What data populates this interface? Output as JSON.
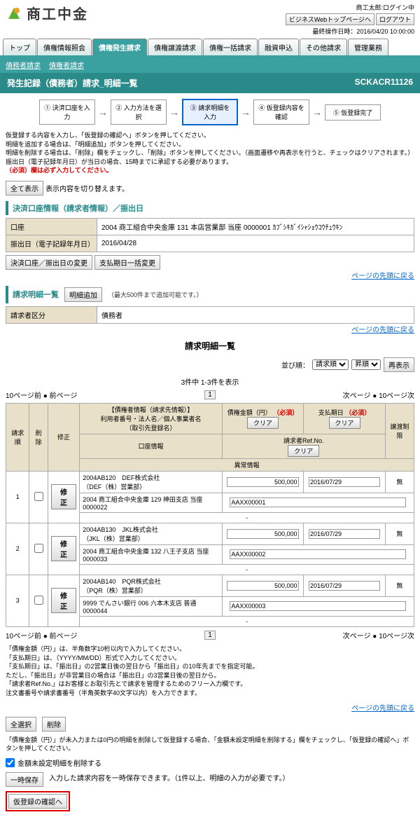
{
  "header": {
    "logo_text": "商工中金",
    "user_info": "商工太郎:ログイン中",
    "biz_top_btn": "ビジネスWebトップページへ",
    "logout_btn": "ログアウト",
    "last_op": "最終操作日時：2016/04/20 10:00:00"
  },
  "tabs": [
    "トップ",
    "債権情報照会",
    "債権発生請求",
    "債権譲渡請求",
    "債権一括請求",
    "融資申込",
    "その他請求",
    "管理業務"
  ],
  "active_tab": 2,
  "subtabs": [
    "債務者請求",
    "債権者請求"
  ],
  "title": "発生記録（債務者）請求_明細一覧",
  "screen_id": "SCKACR11126",
  "flow": [
    "① 決済口座を入力",
    "② 入力方法を選択",
    "③ 請求明細を入力",
    "④ 仮登録内容を確認",
    "⑤ 仮登録完了"
  ],
  "flow_active": 2,
  "notes": {
    "pre": "仮登録する内容を入力し、「仮登録の確認へ」ボタンを押してください。\n明細を追加する場合は、「明細追加」ボタンを押してください。\n明細を削除する場合は、「削除」欄をチェックし、「削除」ボタンを押してください。（画面遷移や再表示を行うと、チェックはクリアされます。）\n振出日（電子記録年月日）が当日の場合、15時までに承認する必要があります。",
    "required": "（必須）欄は必ず入力してください。"
  },
  "toggle_btn": "全て表示",
  "toggle_note": "表示内容を切り替えます。",
  "section1": "決済口座情報（請求者情報）／振出日",
  "account_label": "口座",
  "account_value": "2004 商工組合中央金庫 131 本店営業部 当座 0000001 ｶﾌﾞｼｷｶﾞｲｼｬｼｮｳｺｳﾁｭｳｷﾝ",
  "date_label": "振出日（電子記録年月日）",
  "date_value": "2016/04/28",
  "btn_account_change": "決済口座／振出日の変更",
  "btn_paydate_change": "支払期日一括変更",
  "section2": "請求明細一覧",
  "btn_add": "明細追加",
  "add_note": "（最大500件まで追加可能です。）",
  "requester_label": "請求者区分",
  "requester_value": "債務者",
  "back_link": "ページの先頭に戻る",
  "list_title": "請求明細一覧",
  "sort_label": "並び順：",
  "sort_options": [
    "請求順",
    "昇順"
  ],
  "btn_resort": "再表示",
  "page_info": "3件中 1-3件を表示",
  "pager_prev10": "10ページ前",
  "pager_prev": "前ページ",
  "pager_next": "次ページ",
  "pager_next10": "10ページ次",
  "cols": {
    "order": "請求順",
    "delete": "削除",
    "edit": "修正",
    "creditor": "【債権者情報（請求先情報）】\n利用者番号・法人名／個人事業者名\n（取引先登録名）",
    "account_info": "口座情報",
    "amount": "債権金額（円）",
    "paydate": "支払期日",
    "transfer": "譲渡制限",
    "refno": "請求者Ref.No.",
    "error": "異常情報",
    "required": "（必須）",
    "clear": "クリア"
  },
  "rows": [
    {
      "order": "1",
      "creditor": "2004AB120　DEF株式会社\n（DEF（株）営業部）",
      "account": "2004 商工組合中央金庫 129 神田支店 当座 0000022",
      "amount": "500,000",
      "paydate": "2016/07/29",
      "transfer": "無",
      "refno": "AAXX00001",
      "error": "-"
    },
    {
      "order": "2",
      "creditor": "2004AB130　JKL株式会社\n（JKL（株）営業部）",
      "account": "2004 商工組合中央金庫 132 八王子支店 当座 0000033",
      "amount": "500,000",
      "paydate": "2016/07/29",
      "transfer": "無",
      "refno": "AAXX00002",
      "error": "-"
    },
    {
      "order": "3",
      "creditor": "2004AB140　PQR株式会社\n（PQR（株）営業部）",
      "account": "9999 でんさい銀行 006 六本木支店 普通 0000044",
      "amount": "500,000",
      "paydate": "2016/07/29",
      "transfer": "無",
      "refno": "AAXX00003",
      "error": "-"
    }
  ],
  "btn_edit": "修正",
  "footer_note": "「債権金額（円）」は、半角数字10桁以内で入力してください。\n「支払期日」は、（YYYY/MM/DD）形式で入力してください。\n「支払期日」は、「振出日」の2営業日後の翌日から「振出日」の10年先までを指定可能。\nただし、「振出日」が非営業日の場合は「振出日」の3営業日後の翌日から。\n「請求者Ref.No.」はお客様とお取引先とで請求を管理するためのフリー入力欄です。\n注文書番号や請求書番号（半角英数字40文字以内）を入力できます。",
  "btn_select_all": "全選択",
  "btn_delete": "削除",
  "delete_note": "「債権金額（円）」が未入力または0円の明細を削除して仮登録する場合、「金額未設定明細を削除する」欄をチェックし、「仮登録の確認へ」ボタンを押してください。",
  "checkbox_label": "金額未設定明細を削除する",
  "btn_save": "一時保存",
  "save_note": "入力した請求内容を一時保存できます。（1件以上、明細の入力が必要です。）",
  "btn_confirm": "仮登録の確認へ"
}
